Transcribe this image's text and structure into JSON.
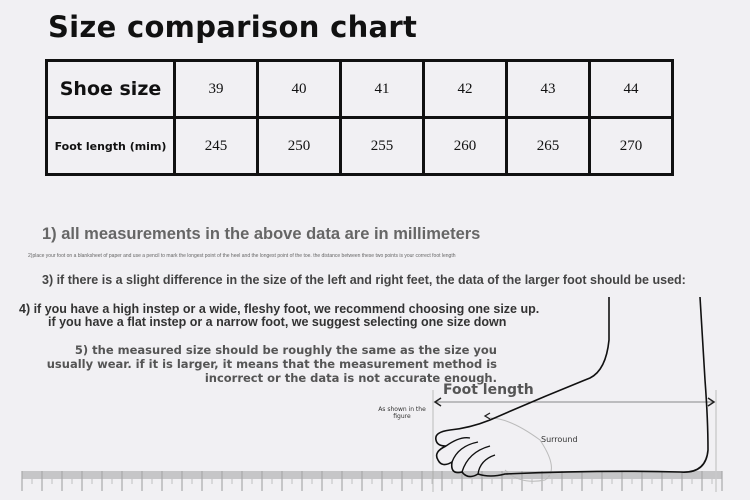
{
  "title": "Size comparison chart",
  "table": {
    "row_headers": [
      "Shoe size",
      "Foot length (mim)"
    ],
    "sizes": [
      "39",
      "40",
      "41",
      "42",
      "43",
      "44"
    ],
    "lengths": [
      "245",
      "250",
      "255",
      "260",
      "265",
      "270"
    ]
  },
  "notes": {
    "n1": "1) all measurements in the above data are in millimeters",
    "n2": "2)place your foot on a blanksheet of paper and use a pencil to mark the longest point of the heel and the longest point of the toe. the distance between these two points is your correct foot length",
    "n3": "3) if there is a slight difference in the size of the left and right feet, the data of the larger foot should be used:",
    "n4a": "4) if you have a high instep or a wide, fleshy foot, we recommend choosing one size up.",
    "n4b": "if you have a flat instep or a narrow foot, we suggest selecting one size down",
    "n5": "5) the measured size should be roughly the same as the size you usually wear. if it is larger, it means that the measurement method is incorrect or the data is not accurate enough."
  },
  "figure": {
    "foot_length_label": "Foot length",
    "as_shown_label": "As shown in the figure",
    "surround_label": "Surround",
    "icons": [
      "foot-illustration",
      "ruler"
    ]
  }
}
